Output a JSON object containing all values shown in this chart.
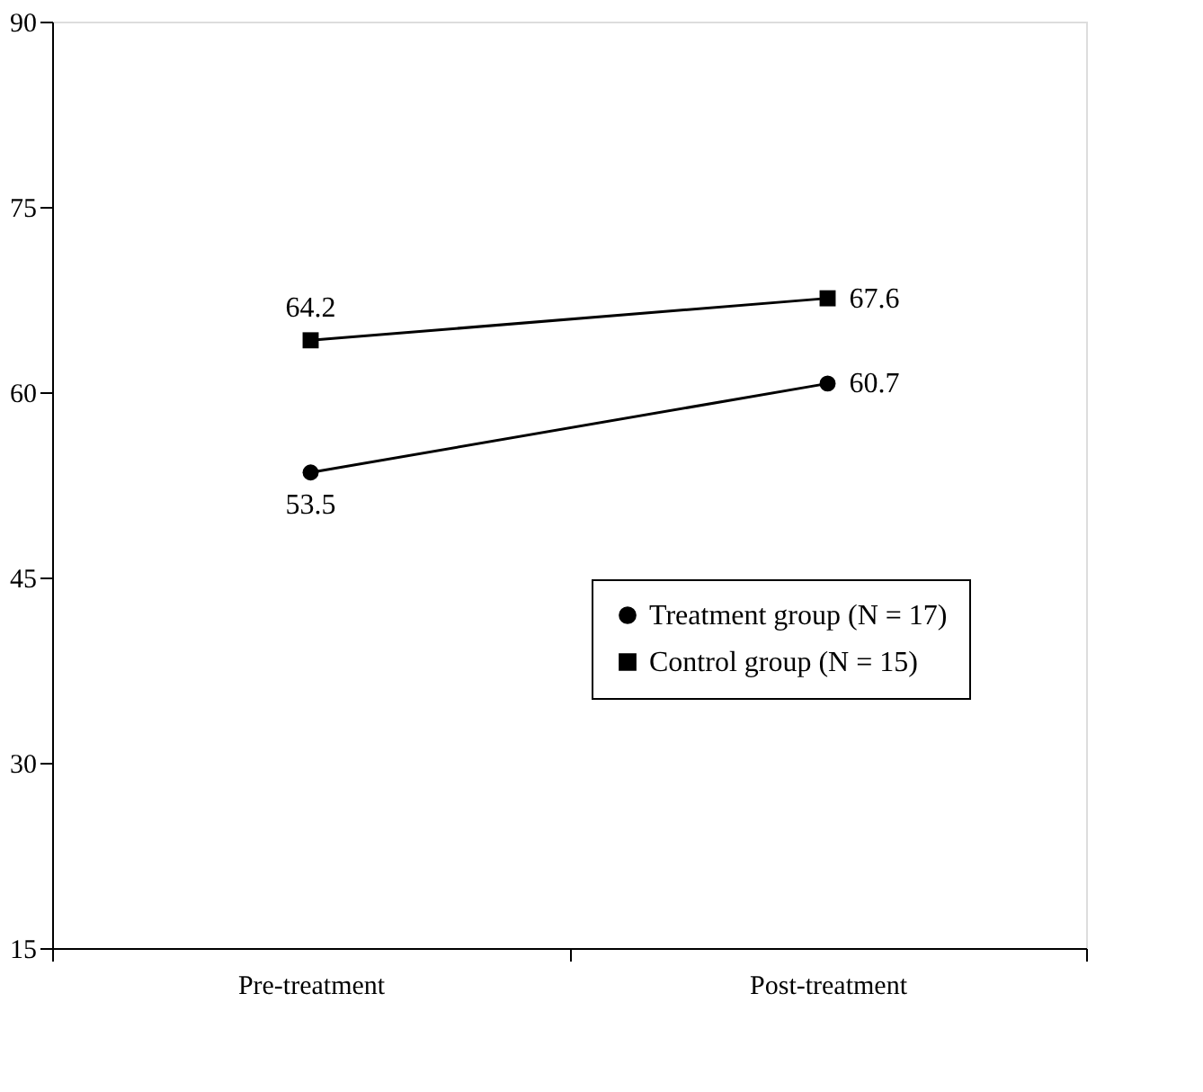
{
  "chart_data": {
    "type": "line",
    "categories": [
      "Pre-treatment",
      "Post-treatment"
    ],
    "series": [
      {
        "name": "Treatment group (N = 17)",
        "color": "#000000",
        "marker": "circle",
        "values": [
          53.5,
          60.7
        ]
      },
      {
        "name": "Control group (N = 15)",
        "color": "#000000",
        "marker": "square",
        "values": [
          64.2,
          67.6
        ]
      }
    ],
    "ylim": [
      15,
      90
    ],
    "yticks": [
      15,
      30,
      45,
      60,
      75,
      90
    ],
    "data_labels": true,
    "grid": false,
    "legend": "bottom right",
    "line_style": "solid"
  }
}
